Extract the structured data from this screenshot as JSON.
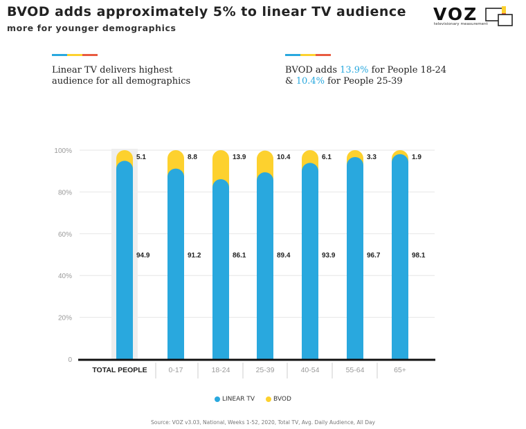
{
  "header": {
    "title": "BVOD adds approximately 5% to linear TV audience",
    "subtitle": "more for younger demographics"
  },
  "logo": {
    "text": "VOZ",
    "tagline": "televisionary measurement"
  },
  "colors": {
    "linear": "#29a8de",
    "bvod": "#fdd12e",
    "accent_red": "#e85a40",
    "highlight": "#29a8de"
  },
  "insights": {
    "left": {
      "line1": "Linear TV delivers highest",
      "line2": "audience for all demographics"
    },
    "right": {
      "line1_pre": "BVOD adds ",
      "line1_hl": "13.9%",
      "line1_post": " for People 18-24",
      "line2_pre": "& ",
      "line2_hl": "10.4%",
      "line2_post": " for People 25-39"
    }
  },
  "chart_data": {
    "type": "bar",
    "stacked": true,
    "categories": [
      "TOTAL PEOPLE",
      "0-17",
      "18-24",
      "25-39",
      "40-54",
      "55-64",
      "65+"
    ],
    "series": [
      {
        "name": "LINEAR TV",
        "values": [
          94.9,
          91.2,
          86.1,
          89.4,
          93.9,
          96.7,
          98.1
        ]
      },
      {
        "name": "BVOD",
        "values": [
          5.1,
          8.8,
          13.9,
          10.4,
          6.1,
          3.3,
          1.9
        ]
      }
    ],
    "ylim": [
      0,
      100
    ],
    "yticks": [
      "0",
      "20%",
      "40%",
      "60%",
      "80%",
      "100%"
    ],
    "highlight_category": "TOTAL PEOPLE",
    "legend_position": "bottom",
    "grid": true
  },
  "footer": {
    "source": "Source: VOZ v3.03, National, Weeks 1-52, 2020, Total TV, Avg. Daily Audience, All Day"
  }
}
